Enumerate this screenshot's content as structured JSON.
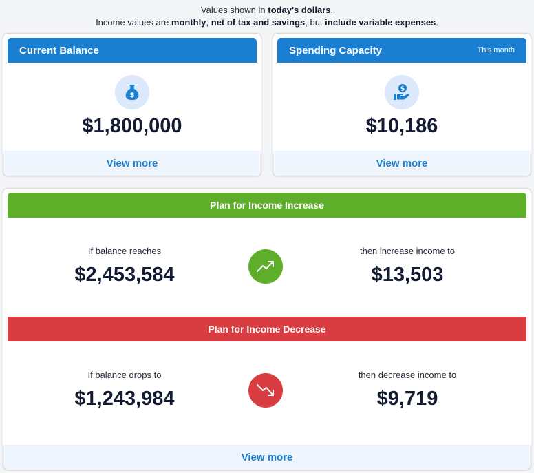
{
  "notice": {
    "line1_pre": "Values shown in ",
    "line1_bold": "today's dollars",
    "line1_post": ".",
    "line2_a": "Income values are ",
    "line2_b": "monthly",
    "line2_c": ", ",
    "line2_d": "net of tax and savings",
    "line2_e": ", but ",
    "line2_f": "include variable expenses",
    "line2_g": "."
  },
  "current_balance": {
    "title": "Current Balance",
    "icon": "money-bag-icon",
    "value": "$1,800,000",
    "view_more": "View more"
  },
  "spending_capacity": {
    "title": "Spending Capacity",
    "badge": "This month",
    "icon": "hand-coin-icon",
    "value": "$10,186",
    "view_more": "View more"
  },
  "plan": {
    "increase": {
      "title": "Plan for Income Increase",
      "left_label": "If balance reaches",
      "left_value": "$2,453,584",
      "icon": "trend-up-icon",
      "right_label": "then increase income to",
      "right_value": "$13,503"
    },
    "decrease": {
      "title": "Plan for Income Decrease",
      "left_label": "If balance drops to",
      "left_value": "$1,243,984",
      "icon": "trend-down-icon",
      "right_label": "then decrease income to",
      "right_value": "$9,719"
    },
    "view_more": "View more"
  },
  "colors": {
    "blue": "#1a7fd0",
    "green": "#5fae2a",
    "red": "#da3d41",
    "light_blue": "#eef5fc"
  }
}
